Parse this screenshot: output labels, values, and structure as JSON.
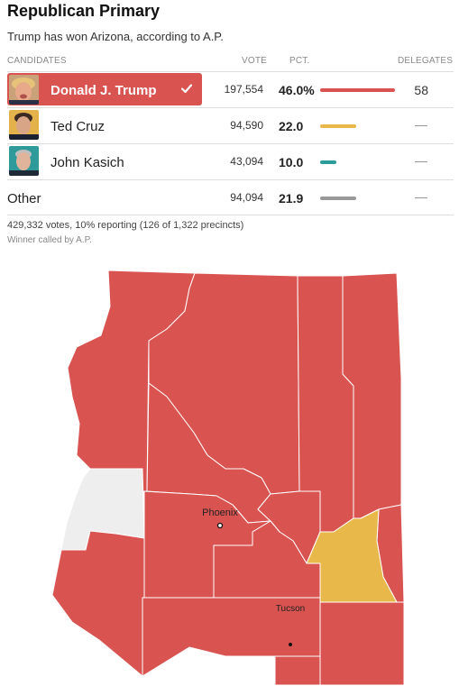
{
  "title": "Republican Primary",
  "subtitle": "Trump has won Arizona, according to A.P.",
  "headers": {
    "candidates": "CANDIDATES",
    "vote": "VOTE",
    "pct": "PCT.",
    "delegates": "DELEGATES"
  },
  "candidates": [
    {
      "name": "Donald J. Trump",
      "vote": "197,554",
      "pct": "46.0%",
      "pct_value": 46.0,
      "delegates": "58",
      "color": "#d95350",
      "winner": true,
      "photo": "trump-photo"
    },
    {
      "name": "Ted Cruz",
      "vote": "94,590",
      "pct": "22.0",
      "pct_value": 22.0,
      "delegates": "—",
      "color": "#e8b84b",
      "winner": false,
      "photo": "cruz-photo"
    },
    {
      "name": "John Kasich",
      "vote": "43,094",
      "pct": "10.0",
      "pct_value": 10.0,
      "delegates": "—",
      "color": "#2a9d9b",
      "winner": false,
      "photo": "kasich-photo"
    },
    {
      "name": "Other",
      "vote": "94,094",
      "pct": "21.9",
      "pct_value": 21.9,
      "delegates": "—",
      "color": "#999999",
      "winner": false
    }
  ],
  "footer": {
    "reporting": "429,332 votes, 10% reporting (126 of 1,322 precincts)",
    "called": "Winner called by A.P."
  },
  "map": {
    "cities": [
      "Phoenix",
      "Tucson"
    ],
    "colors": {
      "trump": "#d95350",
      "cruz": "#e8b84b",
      "no_results": "#eeeeee",
      "border": "#ffffff"
    }
  }
}
